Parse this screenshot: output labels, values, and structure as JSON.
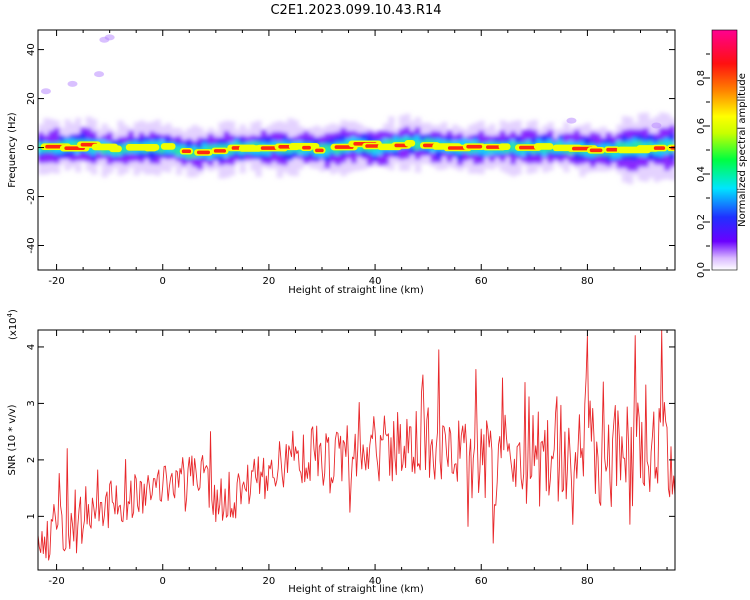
{
  "title": "C2E1.2023.099.10.43.R14",
  "chart_data": [
    {
      "type": "heatmap",
      "xlabel": "Height of straight line (km)",
      "ylabel": "Frequency (Hz)",
      "xlim": [
        -23.5,
        96.5
      ],
      "ylim": [
        -50,
        48
      ],
      "xticks": [
        -20,
        0,
        20,
        40,
        60,
        80
      ],
      "yticks": [
        -40,
        -20,
        0,
        20,
        40
      ],
      "colorbar": {
        "label": "Normalized spectral amplitude",
        "range": [
          0,
          1
        ],
        "ticks": [
          "0.0",
          "0.2",
          "0.4",
          "0.6",
          "0.8"
        ],
        "colors": [
          "#ffffff",
          "#6a00ff",
          "#2030ff",
          "#00e5ff",
          "#00ff40",
          "#c8ff00",
          "#ffff00",
          "#ff8000",
          "#ff1010",
          "#ff0090"
        ]
      },
      "ridge": {
        "x": [
          -23,
          -20,
          -15,
          -10,
          -5,
          0,
          5,
          10,
          15,
          20,
          25,
          30,
          35,
          40,
          45,
          50,
          55,
          60,
          65,
          70,
          75,
          80,
          85,
          90,
          95
        ],
        "frequency": [
          0,
          0,
          1,
          -1,
          0,
          0,
          -2,
          -1,
          0,
          0,
          0,
          -1,
          1,
          0,
          2,
          1,
          0,
          0,
          0,
          0,
          0,
          -1,
          -1,
          0,
          0
        ]
      },
      "outliers": [
        {
          "x": -22,
          "frequency": 23
        },
        {
          "x": -17,
          "frequency": 26
        },
        {
          "x": -12,
          "frequency": 30
        },
        {
          "x": -11,
          "frequency": 44
        },
        {
          "x": -10,
          "frequency": 45
        },
        {
          "x": 77,
          "frequency": 11
        },
        {
          "x": 93,
          "frequency": 9
        }
      ]
    },
    {
      "type": "line",
      "xlabel": "Height of straight line (km)",
      "ylabel": "SNR (10 * v/v)",
      "scale_label": "(x10",
      "scale_exponent": "4",
      "scale_close": ")",
      "xlim": [
        -23.5,
        96.5
      ],
      "ylim": [
        0.05,
        4.3
      ],
      "xticks": [
        -20,
        0,
        20,
        40,
        60,
        80
      ],
      "yticks": [
        1,
        2,
        3,
        4
      ],
      "color": "#e8272a",
      "trend": {
        "x": [
          -23,
          -20,
          -15,
          -10,
          -5,
          0,
          5,
          8,
          9,
          10,
          15,
          20,
          25,
          30,
          35,
          40,
          45,
          50,
          55,
          60,
          65,
          70,
          75,
          80,
          85,
          90,
          95
        ],
        "y": [
          0.4,
          0.8,
          1.1,
          1.2,
          1.4,
          1.6,
          1.7,
          1.8,
          1.2,
          1.2,
          1.5,
          1.8,
          2.0,
          2.1,
          2.1,
          2.2,
          2.2,
          2.1,
          2.1,
          2.0,
          2.0,
          2.0,
          2.1,
          2.1,
          2.0,
          2.0,
          2.1
        ]
      },
      "spread": {
        "x": [
          -23,
          -20,
          -10,
          0,
          10,
          20,
          30,
          40,
          50,
          60,
          70,
          80,
          90,
          95
        ],
        "y": [
          0.35,
          0.55,
          0.45,
          0.35,
          0.45,
          0.45,
          0.55,
          0.6,
          0.75,
          0.8,
          0.85,
          0.95,
          1.0,
          1.05
        ]
      },
      "peaks": [
        {
          "x": -18,
          "y": 2.2
        },
        {
          "x": 9,
          "y": 2.5
        },
        {
          "x": 52,
          "y": 3.95
        },
        {
          "x": 59,
          "y": 3.6
        },
        {
          "x": 64,
          "y": 3.45
        },
        {
          "x": 80,
          "y": 4.2
        },
        {
          "x": 89,
          "y": 4.2
        },
        {
          "x": 94,
          "y": 4.3
        }
      ]
    }
  ]
}
